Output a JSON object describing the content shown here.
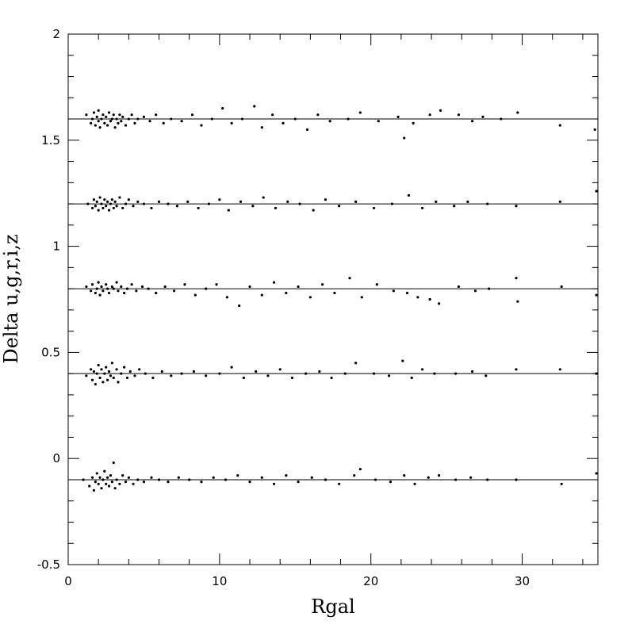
{
  "chart_data": {
    "type": "scatter",
    "title": "",
    "xlabel": "Rgal",
    "ylabel": "Delta u,g,r,i,z",
    "xlim": [
      0,
      35
    ],
    "ylim": [
      -0.5,
      2
    ],
    "x_ticks": [
      0,
      10,
      20,
      30
    ],
    "x_tick_labels": [
      "0",
      "10",
      "20",
      "30"
    ],
    "y_ticks": [
      -0.5,
      0,
      0.5,
      1,
      1.5,
      2
    ],
    "y_tick_labels": [
      "-0.5",
      "0",
      "0.5",
      "1",
      "1.5",
      "2"
    ],
    "grid": false,
    "legend": "none",
    "marker_color": "#000000",
    "reference_lines": [
      -0.1,
      0.4,
      0.8,
      1.2,
      1.6
    ],
    "series": [
      {
        "offset": 1.6,
        "points": [
          [
            1.2,
            1.62
          ],
          [
            1.5,
            1.58
          ],
          [
            1.6,
            1.6
          ],
          [
            1.7,
            1.63
          ],
          [
            1.8,
            1.57
          ],
          [
            1.9,
            1.61
          ],
          [
            2.0,
            1.59
          ],
          [
            2.0,
            1.64
          ],
          [
            2.1,
            1.56
          ],
          [
            2.2,
            1.6
          ],
          [
            2.3,
            1.62
          ],
          [
            2.4,
            1.58
          ],
          [
            2.5,
            1.61
          ],
          [
            2.6,
            1.57
          ],
          [
            2.7,
            1.63
          ],
          [
            2.8,
            1.59
          ],
          [
            2.9,
            1.6
          ],
          [
            3.0,
            1.62
          ],
          [
            3.1,
            1.56
          ],
          [
            3.2,
            1.6
          ],
          [
            3.3,
            1.58
          ],
          [
            3.4,
            1.62
          ],
          [
            3.5,
            1.59
          ],
          [
            3.6,
            1.61
          ],
          [
            3.8,
            1.57
          ],
          [
            4.0,
            1.6
          ],
          [
            4.2,
            1.62
          ],
          [
            4.4,
            1.58
          ],
          [
            4.6,
            1.6
          ],
          [
            5.0,
            1.61
          ],
          [
            5.4,
            1.59
          ],
          [
            5.8,
            1.62
          ],
          [
            6.3,
            1.58
          ],
          [
            6.8,
            1.6
          ],
          [
            7.5,
            1.59
          ],
          [
            8.2,
            1.62
          ],
          [
            8.8,
            1.57
          ],
          [
            9.5,
            1.6
          ],
          [
            10.2,
            1.65
          ],
          [
            10.8,
            1.58
          ],
          [
            11.5,
            1.6
          ],
          [
            12.3,
            1.66
          ],
          [
            12.8,
            1.56
          ],
          [
            13.5,
            1.62
          ],
          [
            14.2,
            1.58
          ],
          [
            15.0,
            1.6
          ],
          [
            15.8,
            1.55
          ],
          [
            16.5,
            1.62
          ],
          [
            17.3,
            1.59
          ],
          [
            18.5,
            1.6
          ],
          [
            19.3,
            1.63
          ],
          [
            20.5,
            1.59
          ],
          [
            21.8,
            1.61
          ],
          [
            22.2,
            1.51
          ],
          [
            22.8,
            1.58
          ],
          [
            23.9,
            1.62
          ],
          [
            24.6,
            1.64
          ],
          [
            25.8,
            1.62
          ],
          [
            26.7,
            1.59
          ],
          [
            27.4,
            1.61
          ],
          [
            28.6,
            1.6
          ],
          [
            29.7,
            1.63
          ],
          [
            32.5,
            1.57
          ],
          [
            34.8,
            1.55
          ]
        ]
      },
      {
        "offset": 1.2,
        "points": [
          [
            1.3,
            1.2
          ],
          [
            1.6,
            1.18
          ],
          [
            1.7,
            1.22
          ],
          [
            1.8,
            1.19
          ],
          [
            1.9,
            1.21
          ],
          [
            2.0,
            1.17
          ],
          [
            2.1,
            1.23
          ],
          [
            2.2,
            1.2
          ],
          [
            2.3,
            1.18
          ],
          [
            2.4,
            1.22
          ],
          [
            2.5,
            1.19
          ],
          [
            2.6,
            1.21
          ],
          [
            2.7,
            1.17
          ],
          [
            2.8,
            1.2
          ],
          [
            2.9,
            1.22
          ],
          [
            3.0,
            1.18
          ],
          [
            3.1,
            1.21
          ],
          [
            3.2,
            1.19
          ],
          [
            3.4,
            1.23
          ],
          [
            3.6,
            1.18
          ],
          [
            3.8,
            1.2
          ],
          [
            4.0,
            1.22
          ],
          [
            4.3,
            1.19
          ],
          [
            4.6,
            1.21
          ],
          [
            5.0,
            1.2
          ],
          [
            5.5,
            1.18
          ],
          [
            6.0,
            1.21
          ],
          [
            6.6,
            1.2
          ],
          [
            7.2,
            1.19
          ],
          [
            7.9,
            1.21
          ],
          [
            8.6,
            1.18
          ],
          [
            9.3,
            1.2
          ],
          [
            10.0,
            1.22
          ],
          [
            10.6,
            1.17
          ],
          [
            11.4,
            1.21
          ],
          [
            12.2,
            1.19
          ],
          [
            12.9,
            1.23
          ],
          [
            13.7,
            1.18
          ],
          [
            14.5,
            1.21
          ],
          [
            15.3,
            1.2
          ],
          [
            16.2,
            1.17
          ],
          [
            17.0,
            1.22
          ],
          [
            17.9,
            1.19
          ],
          [
            19.0,
            1.21
          ],
          [
            20.2,
            1.18
          ],
          [
            21.4,
            1.2
          ],
          [
            22.5,
            1.24
          ],
          [
            23.4,
            1.18
          ],
          [
            24.3,
            1.21
          ],
          [
            25.5,
            1.19
          ],
          [
            26.4,
            1.21
          ],
          [
            27.7,
            1.2
          ],
          [
            29.6,
            1.19
          ],
          [
            32.5,
            1.21
          ],
          [
            34.9,
            1.26
          ]
        ]
      },
      {
        "offset": 0.8,
        "points": [
          [
            1.2,
            0.81
          ],
          [
            1.5,
            0.79
          ],
          [
            1.6,
            0.82
          ],
          [
            1.8,
            0.78
          ],
          [
            1.9,
            0.8
          ],
          [
            2.0,
            0.83
          ],
          [
            2.1,
            0.77
          ],
          [
            2.2,
            0.81
          ],
          [
            2.3,
            0.79
          ],
          [
            2.5,
            0.82
          ],
          [
            2.6,
            0.8
          ],
          [
            2.7,
            0.78
          ],
          [
            2.9,
            0.81
          ],
          [
            3.0,
            0.8
          ],
          [
            3.2,
            0.83
          ],
          [
            3.3,
            0.79
          ],
          [
            3.5,
            0.81
          ],
          [
            3.7,
            0.78
          ],
          [
            3.9,
            0.8
          ],
          [
            4.2,
            0.82
          ],
          [
            4.5,
            0.79
          ],
          [
            4.9,
            0.81
          ],
          [
            5.3,
            0.8
          ],
          [
            5.8,
            0.78
          ],
          [
            6.4,
            0.81
          ],
          [
            7.0,
            0.79
          ],
          [
            7.7,
            0.82
          ],
          [
            8.4,
            0.77
          ],
          [
            9.1,
            0.8
          ],
          [
            9.8,
            0.82
          ],
          [
            10.5,
            0.76
          ],
          [
            11.3,
            0.72
          ],
          [
            12.0,
            0.81
          ],
          [
            12.8,
            0.77
          ],
          [
            13.6,
            0.83
          ],
          [
            14.4,
            0.78
          ],
          [
            15.2,
            0.81
          ],
          [
            16.0,
            0.76
          ],
          [
            16.8,
            0.82
          ],
          [
            17.6,
            0.78
          ],
          [
            18.6,
            0.85
          ],
          [
            19.4,
            0.76
          ],
          [
            20.4,
            0.82
          ],
          [
            21.5,
            0.79
          ],
          [
            22.4,
            0.78
          ],
          [
            23.1,
            0.76
          ],
          [
            23.9,
            0.75
          ],
          [
            24.5,
            0.73
          ],
          [
            25.8,
            0.81
          ],
          [
            26.9,
            0.79
          ],
          [
            27.8,
            0.8
          ],
          [
            29.6,
            0.85
          ],
          [
            29.7,
            0.74
          ],
          [
            32.6,
            0.81
          ],
          [
            34.9,
            0.77
          ]
        ]
      },
      {
        "offset": 0.4,
        "points": [
          [
            1.2,
            0.39
          ],
          [
            1.5,
            0.42
          ],
          [
            1.6,
            0.37
          ],
          [
            1.7,
            0.41
          ],
          [
            1.8,
            0.35
          ],
          [
            1.9,
            0.4
          ],
          [
            2.0,
            0.44
          ],
          [
            2.1,
            0.38
          ],
          [
            2.2,
            0.42
          ],
          [
            2.3,
            0.36
          ],
          [
            2.4,
            0.4
          ],
          [
            2.5,
            0.43
          ],
          [
            2.6,
            0.37
          ],
          [
            2.7,
            0.41
          ],
          [
            2.8,
            0.39
          ],
          [
            2.9,
            0.45
          ],
          [
            3.0,
            0.38
          ],
          [
            3.2,
            0.42
          ],
          [
            3.3,
            0.36
          ],
          [
            3.5,
            0.4
          ],
          [
            3.7,
            0.43
          ],
          [
            3.9,
            0.38
          ],
          [
            4.1,
            0.41
          ],
          [
            4.4,
            0.39
          ],
          [
            4.7,
            0.42
          ],
          [
            5.1,
            0.4
          ],
          [
            5.6,
            0.38
          ],
          [
            6.2,
            0.41
          ],
          [
            6.8,
            0.39
          ],
          [
            7.5,
            0.4
          ],
          [
            8.3,
            0.41
          ],
          [
            9.1,
            0.39
          ],
          [
            10.0,
            0.4
          ],
          [
            10.8,
            0.43
          ],
          [
            11.6,
            0.38
          ],
          [
            12.4,
            0.41
          ],
          [
            13.2,
            0.39
          ],
          [
            14.0,
            0.42
          ],
          [
            14.8,
            0.38
          ],
          [
            15.7,
            0.4
          ],
          [
            16.6,
            0.41
          ],
          [
            17.4,
            0.38
          ],
          [
            18.3,
            0.4
          ],
          [
            19.0,
            0.45
          ],
          [
            20.2,
            0.4
          ],
          [
            21.2,
            0.39
          ],
          [
            22.1,
            0.46
          ],
          [
            22.7,
            0.38
          ],
          [
            23.4,
            0.42
          ],
          [
            24.2,
            0.4
          ],
          [
            25.6,
            0.4
          ],
          [
            26.7,
            0.41
          ],
          [
            27.6,
            0.39
          ],
          [
            29.6,
            0.42
          ],
          [
            32.5,
            0.42
          ],
          [
            34.9,
            0.4
          ]
        ]
      },
      {
        "offset": -0.1,
        "points": [
          [
            1.0,
            -0.1
          ],
          [
            1.4,
            -0.13
          ],
          [
            1.6,
            -0.09
          ],
          [
            1.7,
            -0.15
          ],
          [
            1.8,
            -0.11
          ],
          [
            1.9,
            -0.07
          ],
          [
            2.0,
            -0.12
          ],
          [
            2.1,
            -0.09
          ],
          [
            2.2,
            -0.14
          ],
          [
            2.3,
            -0.1
          ],
          [
            2.4,
            -0.06
          ],
          [
            2.5,
            -0.12
          ],
          [
            2.6,
            -0.09
          ],
          [
            2.7,
            -0.13
          ],
          [
            2.8,
            -0.08
          ],
          [
            2.9,
            -0.11
          ],
          [
            3.0,
            -0.02
          ],
          [
            3.1,
            -0.14
          ],
          [
            3.2,
            -0.1
          ],
          [
            3.4,
            -0.12
          ],
          [
            3.6,
            -0.08
          ],
          [
            3.8,
            -0.11
          ],
          [
            4.0,
            -0.09
          ],
          [
            4.3,
            -0.12
          ],
          [
            4.6,
            -0.1
          ],
          [
            5.0,
            -0.11
          ],
          [
            5.5,
            -0.09
          ],
          [
            6.0,
            -0.1
          ],
          [
            6.6,
            -0.11
          ],
          [
            7.3,
            -0.09
          ],
          [
            8.0,
            -0.1
          ],
          [
            8.8,
            -0.11
          ],
          [
            9.6,
            -0.09
          ],
          [
            10.4,
            -0.1
          ],
          [
            11.2,
            -0.08
          ],
          [
            12.0,
            -0.11
          ],
          [
            12.8,
            -0.09
          ],
          [
            13.6,
            -0.12
          ],
          [
            14.4,
            -0.08
          ],
          [
            15.2,
            -0.11
          ],
          [
            16.1,
            -0.09
          ],
          [
            17.0,
            -0.1
          ],
          [
            17.9,
            -0.12
          ],
          [
            18.9,
            -0.08
          ],
          [
            19.3,
            -0.05
          ],
          [
            20.3,
            -0.1
          ],
          [
            21.3,
            -0.11
          ],
          [
            22.2,
            -0.08
          ],
          [
            22.9,
            -0.12
          ],
          [
            23.8,
            -0.09
          ],
          [
            24.5,
            -0.08
          ],
          [
            25.6,
            -0.1
          ],
          [
            26.6,
            -0.09
          ],
          [
            27.7,
            -0.1
          ],
          [
            29.6,
            -0.1
          ],
          [
            32.6,
            -0.12
          ],
          [
            34.9,
            -0.07
          ]
        ]
      }
    ]
  }
}
